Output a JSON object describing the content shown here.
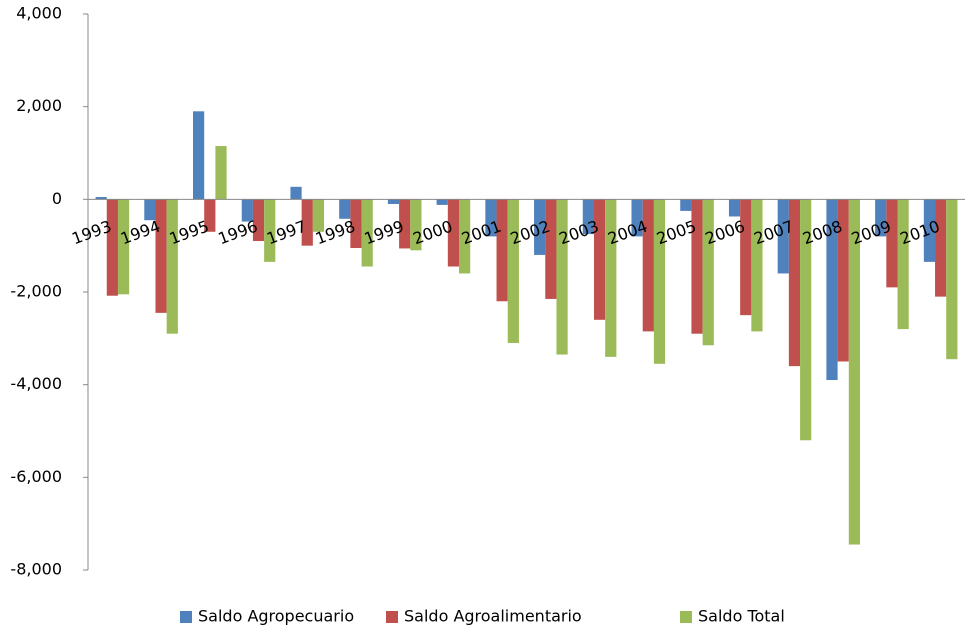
{
  "chart_data": {
    "type": "bar",
    "categories": [
      "1993",
      "1994",
      "1995",
      "1996",
      "1997",
      "1998",
      "1999",
      "2000",
      "2001",
      "2002",
      "2003",
      "2004",
      "2005",
      "2006",
      "2007",
      "2008",
      "2009",
      "2010"
    ],
    "series": [
      {
        "name": "Saldo Agropecuario",
        "color": "#4f81bd",
        "values": [
          50,
          -450,
          1900,
          -480,
          270,
          -420,
          -100,
          -120,
          -800,
          -1200,
          -750,
          -800,
          -250,
          -370,
          -1600,
          -3900,
          -800,
          -1350
        ]
      },
      {
        "name": "Saldo Agroalimentario",
        "color": "#c0504d",
        "values": [
          -2080,
          -2450,
          -700,
          -900,
          -1000,
          -1050,
          -1060,
          -1450,
          -2200,
          -2150,
          -2600,
          -2850,
          -2900,
          -2500,
          -3600,
          -3500,
          -1900,
          -2100
        ]
      },
      {
        "name": "Saldo Total",
        "color": "#9bbb59",
        "values": [
          -2050,
          -2900,
          1150,
          -1350,
          -700,
          -1450,
          -1100,
          -1600,
          -3100,
          -3350,
          -3400,
          -3550,
          -3150,
          -2850,
          -5200,
          -7450,
          -2800,
          -3450
        ]
      }
    ],
    "ylim": [
      -8000,
      4000
    ],
    "yticks": [
      {
        "value": -8000,
        "label": "-8,000"
      },
      {
        "value": -6000,
        "label": "-6,000"
      },
      {
        "value": -4000,
        "label": "-4,000"
      },
      {
        "value": -2000,
        "label": "-2,000"
      },
      0,
      {
        "value": 2000,
        "label": "2,000"
      },
      {
        "value": 4000,
        "label": "4,000"
      }
    ],
    "legend": "bottom"
  }
}
